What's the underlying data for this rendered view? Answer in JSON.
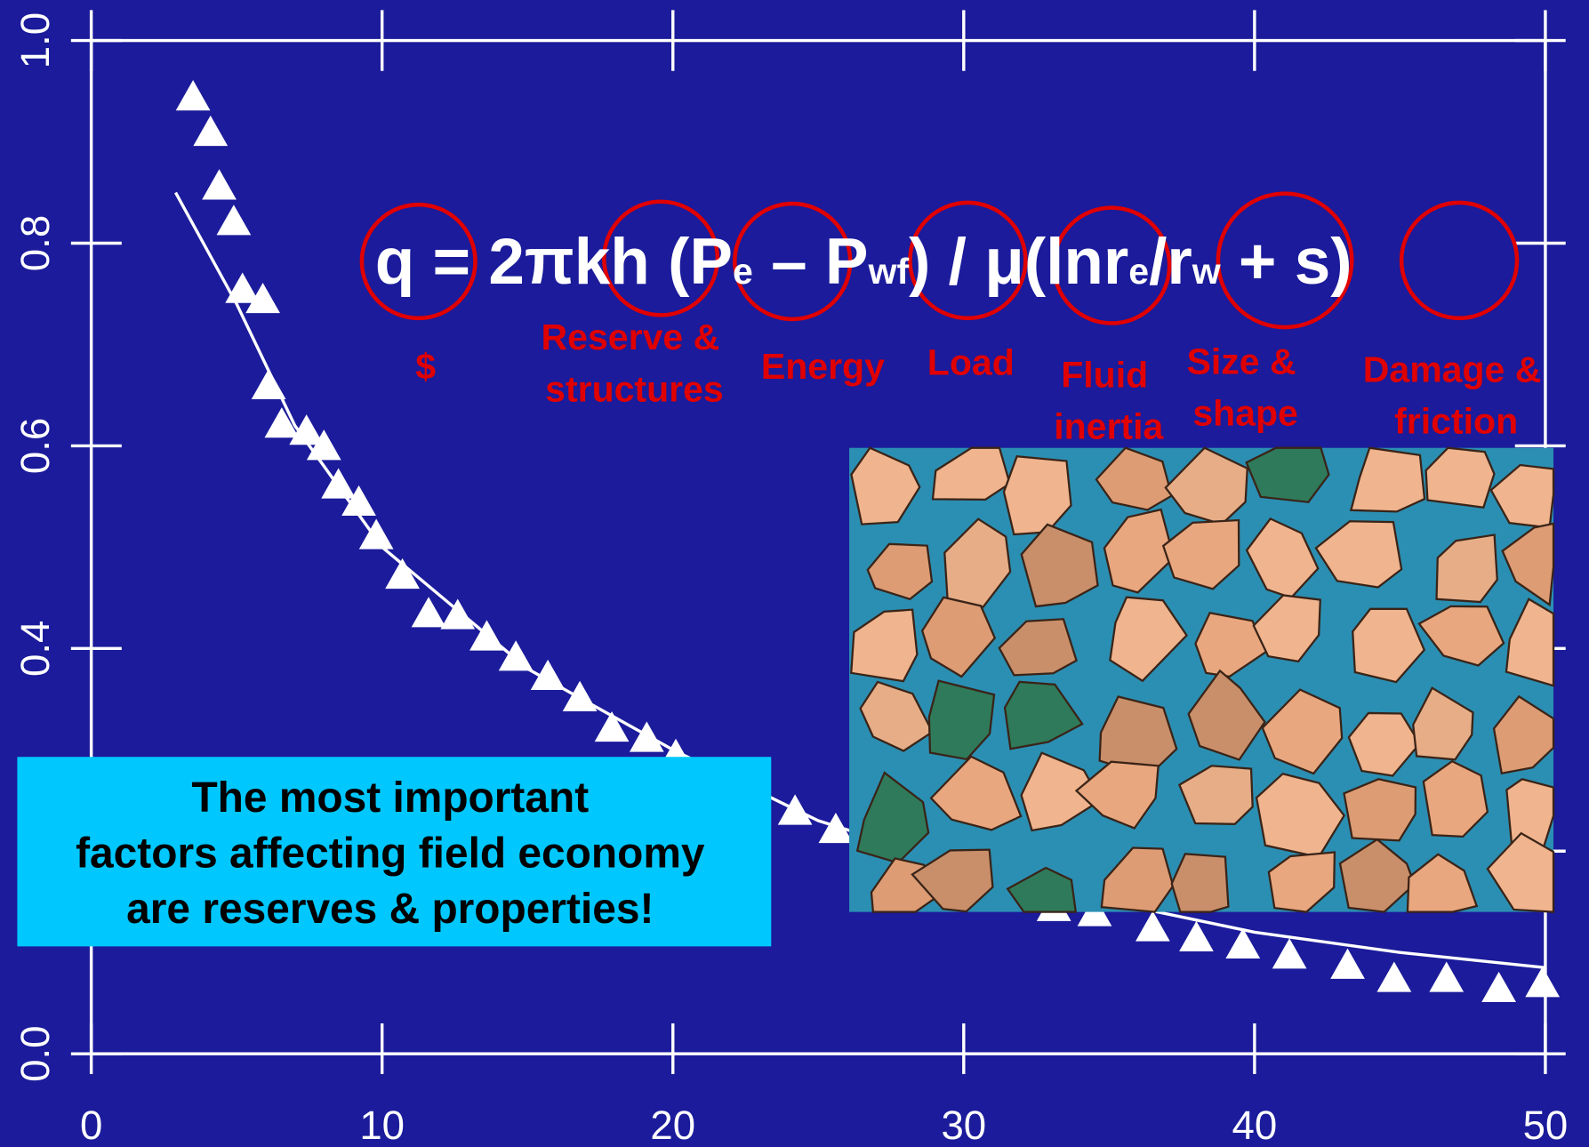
{
  "chart_data": {
    "type": "scatter",
    "xlim": [
      0,
      50
    ],
    "ylim": [
      0,
      1
    ],
    "xticks": [
      0,
      10,
      20,
      30,
      40,
      50
    ],
    "yticks": [
      {
        "value": 0,
        "label": "0.0"
      },
      0.2,
      0.4,
      0.6,
      0.8,
      {
        "value": 1,
        "label": "1.0"
      }
    ],
    "series": [
      {
        "color": "#ffffff",
        "marker": "triangle",
        "x": [
          3.5,
          4.1,
          4.4,
          4.9,
          5.2,
          5.9,
          6.1,
          6.55,
          7.4,
          8.0,
          8.5,
          9.2,
          9.8,
          10.7,
          11.6,
          12.6,
          13.6,
          14.6,
          15.7,
          16.8,
          17.9,
          19.1,
          20.1,
          24.2,
          25.6,
          33.1,
          34.5,
          36.5,
          38.0,
          39.6,
          41.2,
          43.2,
          44.8,
          46.6,
          48.4,
          49.9
        ],
        "values": [
          0.945,
          0.91,
          0.857,
          0.822,
          0.755,
          0.745,
          0.66,
          0.622,
          0.615,
          0.6,
          0.562,
          0.545,
          0.512,
          0.473,
          0.435,
          0.433,
          0.412,
          0.392,
          0.373,
          0.352,
          0.322,
          0.312,
          0.295,
          0.24,
          0.222,
          0.145,
          0.14,
          0.125,
          0.115,
          0.108,
          0.098,
          0.088,
          0.075,
          0.075,
          0.065,
          0.07
        ]
      },
      {
        "color": "#ffffff",
        "marker": "line",
        "x": [
          2.9,
          5,
          7,
          10,
          15,
          20,
          25,
          30,
          35,
          40,
          45,
          50
        ],
        "values": [
          0.85,
          0.74,
          0.62,
          0.5,
          0.38,
          0.3,
          0.23,
          0.185,
          0.15,
          0.12,
          0.1,
          0.085
        ]
      }
    ]
  },
  "equation": [
    {
      "text": "q = 2πkh (P"
    },
    {
      "text": "e",
      "sub": true
    },
    {
      "text": " – P"
    },
    {
      "text": "wf",
      "sub": true
    },
    {
      "text": ") / μ(lnr"
    },
    {
      "text": "e",
      "sub": true
    },
    {
      "text": "/r"
    },
    {
      "text": "w",
      "sub": true
    },
    {
      "text": " + s)"
    }
  ],
  "factors": [
    [
      "$"
    ],
    [
      "Reserve &",
      "structures"
    ],
    [
      "Energy"
    ],
    [
      "Load"
    ],
    [
      "Fluid",
      "inertia"
    ],
    [
      "Size &",
      "shape"
    ],
    [
      "Damage &",
      "friction"
    ]
  ],
  "callout": [
    "The most important",
    "factors affecting field economy",
    "are reserves & properties!"
  ]
}
